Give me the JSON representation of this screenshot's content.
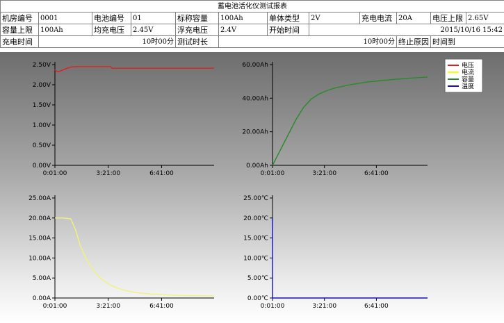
{
  "report": {
    "title": "蓄电池活化仪测试报表",
    "row1": {
      "room_label": "机房编号",
      "room_value": "0001",
      "battery_label": "电池编号",
      "battery_value": "01",
      "capacity_label": "标称容量",
      "capacity_value": "100Ah",
      "cell_type_label": "单体类型",
      "cell_type_value": "2V",
      "charge_current_label": "充电电流",
      "charge_current_value": "20A",
      "voltage_upper_label": "电压上限",
      "voltage_upper_value": "2.65V"
    },
    "row2": {
      "capacity_upper_label": "容量上限",
      "capacity_upper_value": "100Ah",
      "equalize_label": "均充电压",
      "equalize_value": "2.45V",
      "float_label": "浮充电压",
      "float_value": "2.4V",
      "start_label": "开始时间",
      "start_value": "2015/10/16 15:42"
    },
    "row3": {
      "charge_time_label": "充电时间",
      "charge_time_value": "10时00分",
      "test_duration_label": "测试时长",
      "test_duration_value": "10时00分",
      "end_reason_label": "终止原因",
      "end_reason_value": "时间到"
    }
  },
  "colors": {
    "voltage": "#e02020",
    "current": "#f2f27a",
    "capacity": "#2a8a2a",
    "temperature": "#1010c8"
  },
  "legend": {
    "items": [
      {
        "label": "电压",
        "color": "#e02020"
      },
      {
        "label": "电流",
        "color": "#ffff00"
      },
      {
        "label": "容量",
        "color": "#2a8a2a"
      },
      {
        "label": "温度",
        "color": "#1010c8"
      }
    ]
  },
  "chart_data": [
    {
      "type": "line",
      "series": [
        {
          "name": "电压",
          "color": "#e02020",
          "x": [
            0,
            0.05,
            0.2,
            0.4,
            0.7,
            1.0,
            1.3,
            1.6,
            2.0,
            2.5,
            3.0,
            3.5,
            3.6,
            4.0,
            5.0,
            6.0,
            7.0,
            8.0,
            9.0,
            10.0
          ],
          "y": [
            2.38,
            2.35,
            2.32,
            2.35,
            2.4,
            2.44,
            2.45,
            2.45,
            2.45,
            2.45,
            2.45,
            2.45,
            2.41,
            2.41,
            2.41,
            2.41,
            2.41,
            2.41,
            2.41,
            2.41
          ]
        }
      ],
      "yticks": [
        "0.00V",
        "0.50V",
        "1.00V",
        "1.50V",
        "2.00V",
        "2.50V"
      ],
      "ylim": [
        0,
        2.5
      ],
      "xticks": [
        "0:01:00",
        "3:21:00",
        "6:41:00"
      ],
      "xlim": [
        0,
        10
      ]
    },
    {
      "type": "line",
      "series": [
        {
          "name": "容量",
          "color": "#2a8a2a",
          "x": [
            0,
            0.5,
            1.0,
            1.5,
            2.0,
            2.5,
            3.0,
            3.5,
            4.0,
            5.0,
            6.0,
            7.0,
            8.0,
            9.0,
            10.0
          ],
          "y": [
            0,
            9,
            18,
            27,
            34.5,
            39.5,
            42.5,
            44.5,
            46,
            48,
            49.5,
            50.5,
            51.3,
            52,
            52.6
          ]
        }
      ],
      "yticks": [
        "0.00Ah",
        "20.00Ah",
        "40.00Ah",
        "60.00Ah"
      ],
      "ylim": [
        0,
        60
      ],
      "xticks": [
        "0:01:00",
        "3:21:00",
        "6:41:00"
      ],
      "xlim": [
        0,
        10
      ]
    },
    {
      "type": "line",
      "series": [
        {
          "name": "电流",
          "color": "#f2f27a",
          "x": [
            0,
            0.5,
            1.0,
            1.3,
            1.6,
            2.0,
            2.5,
            3.0,
            3.5,
            4.0,
            4.5,
            5.0,
            6.0,
            7.0,
            8.0,
            9.0,
            10.0
          ],
          "y": [
            20,
            20,
            19.8,
            17,
            13,
            9.5,
            6.5,
            4.5,
            3.2,
            2.4,
            1.8,
            1.4,
            1.0,
            0.8,
            0.65,
            0.55,
            0.5
          ]
        }
      ],
      "yticks": [
        "0.00A",
        "5.00A",
        "10.00A",
        "15.00A",
        "20.00A",
        "25.00A"
      ],
      "ylim": [
        0,
        25
      ],
      "xticks": [
        "0:01:00",
        "3:21:00",
        "6:41:00"
      ],
      "xlim": [
        0,
        10
      ]
    },
    {
      "type": "line",
      "series": [
        {
          "name": "温度",
          "color": "#1010c8",
          "x": [
            0,
            0.001,
            10.0
          ],
          "y": [
            20,
            0,
            0
          ]
        }
      ],
      "yticks": [
        "0.00℃",
        "5.00℃",
        "10.00℃",
        "15.00℃",
        "20.00℃",
        "25.00℃"
      ],
      "ylim": [
        0,
        25
      ],
      "xticks": [
        "0:01:00",
        "3:21:00",
        "6:41:00"
      ],
      "xlim": [
        0,
        10
      ]
    }
  ]
}
